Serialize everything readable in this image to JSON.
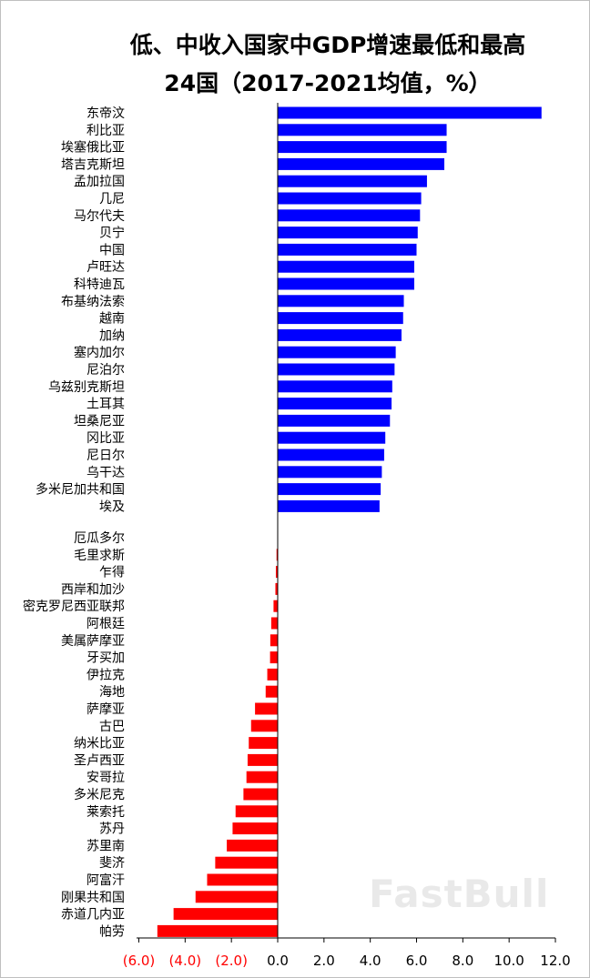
{
  "chart_data": {
    "type": "bar",
    "orientation": "horizontal",
    "title": "低、中收入国家中GDP增速最低和最高",
    "subtitle": "24国（2017-2021均值，%）",
    "xlim": [
      -6,
      12
    ],
    "ticks": [
      -6,
      -4,
      -2,
      0,
      2,
      4,
      6,
      8,
      10,
      12
    ],
    "tick_labels": [
      "(6.0)",
      "(4.0)",
      "(2.0)",
      "0.0",
      "2.0",
      "4.0",
      "6.0",
      "8.0",
      "10.0",
      "12.0"
    ],
    "colors": {
      "positive": "#0000ff",
      "negative": "#ff0000",
      "negative_tick": "#ff0000",
      "positive_tick": "#000000"
    },
    "top_group": {
      "categories": [
        "东帝汶",
        "利比亚",
        "埃塞俄比亚",
        "塔吉克斯坦",
        "孟加拉国",
        "几尼",
        "马尔代夫",
        "贝宁",
        "中国",
        "卢旺达",
        "科特迪瓦",
        "布基纳法索",
        "越南",
        "加纳",
        "塞内加尔",
        "尼泊尔",
        "乌兹别克斯坦",
        "土耳其",
        "坦桑尼亚",
        "冈比亚",
        "尼日尔",
        "乌干达",
        "多米尼加共和国",
        "埃及"
      ],
      "values": [
        11.4,
        7.3,
        7.3,
        7.2,
        6.45,
        6.2,
        6.15,
        6.05,
        6.0,
        5.9,
        5.9,
        5.45,
        5.42,
        5.35,
        5.1,
        5.05,
        4.95,
        4.92,
        4.85,
        4.65,
        4.6,
        4.5,
        4.45,
        4.4
      ]
    },
    "bottom_group": {
      "categories": [
        "厄瓜多尔",
        "毛里求斯",
        "乍得",
        "西岸和加沙",
        "密克罗尼西亚联邦",
        "阿根廷",
        "美属萨摩亚",
        "牙买加",
        "伊拉克",
        "海地",
        "萨摩亚",
        "古巴",
        "纳米比亚",
        "圣卢西亚",
        "安哥拉",
        "多米尼克",
        "莱索托",
        "苏丹",
        "苏里南",
        "斐济",
        "阿富汗",
        "刚果共和国",
        "赤道几内亚",
        "帕劳"
      ],
      "values": [
        -0.02,
        -0.05,
        -0.08,
        -0.1,
        -0.18,
        -0.28,
        -0.32,
        -0.33,
        -0.45,
        -0.52,
        -0.98,
        -1.15,
        -1.25,
        -1.3,
        -1.35,
        -1.48,
        -1.82,
        -1.95,
        -2.2,
        -2.7,
        -3.05,
        -3.55,
        -4.5,
        -5.2
      ]
    }
  },
  "watermark": "FastBull"
}
